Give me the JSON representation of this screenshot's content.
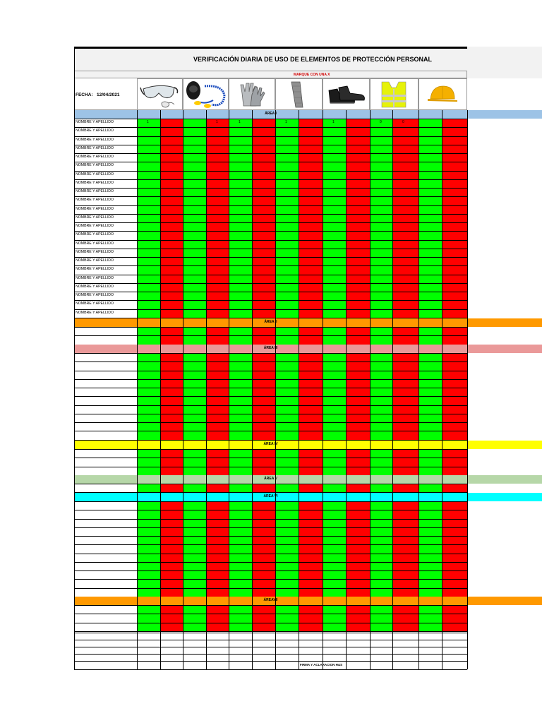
{
  "title": "VERIFICACIÓN DIARIA DE USO DE ELEMENTOS DE PROTECCIÓN PERSONAL",
  "instruction": "MARQUE CON UNA X",
  "fecha_label": "FECHA:",
  "fecha_value": "12/04/2021",
  "ppe_icons": [
    "safety-glasses-icon",
    "ear-protection-icon",
    "work-gloves-icon",
    "arm-sleeve-icon",
    "safety-boots-icon",
    "reflective-vest-icon",
    "hard-hat-icon"
  ],
  "areas": [
    {
      "label": "ÁREA I",
      "color": "#9dc3e6",
      "rows": 23,
      "named": true
    },
    {
      "label": "ÁREA II",
      "color": "#ff9900",
      "rows": 2,
      "named": false
    },
    {
      "label": "ÁREA III",
      "color": "#ea9999",
      "rows": 10,
      "named": false
    },
    {
      "label": "ÁREA IV",
      "color": "#ffff00",
      "rows": 3,
      "named": false
    },
    {
      "label": "ÁREA V",
      "color": "#b6d7a8",
      "rows": 1,
      "named": false
    },
    {
      "label": "ÁREA VI",
      "color": "#00ffff",
      "rows": 11,
      "named": false
    },
    {
      "label": "ÁREAVII",
      "color": "#ff9900",
      "rows": 3,
      "named": false
    }
  ],
  "name_placeholder": "NOMBRE Y APELLIDO",
  "area1_first_row_marks": [
    "1",
    "",
    "",
    "1",
    "1",
    "",
    "1",
    "",
    "1",
    "",
    "0",
    "0",
    "",
    ""
  ],
  "firma_label": "FIRMA Y ACLARACION H&S",
  "colors": {
    "si": "#00ff00",
    "no": "#ff0000",
    "title_bg": "#f2f2f2"
  }
}
